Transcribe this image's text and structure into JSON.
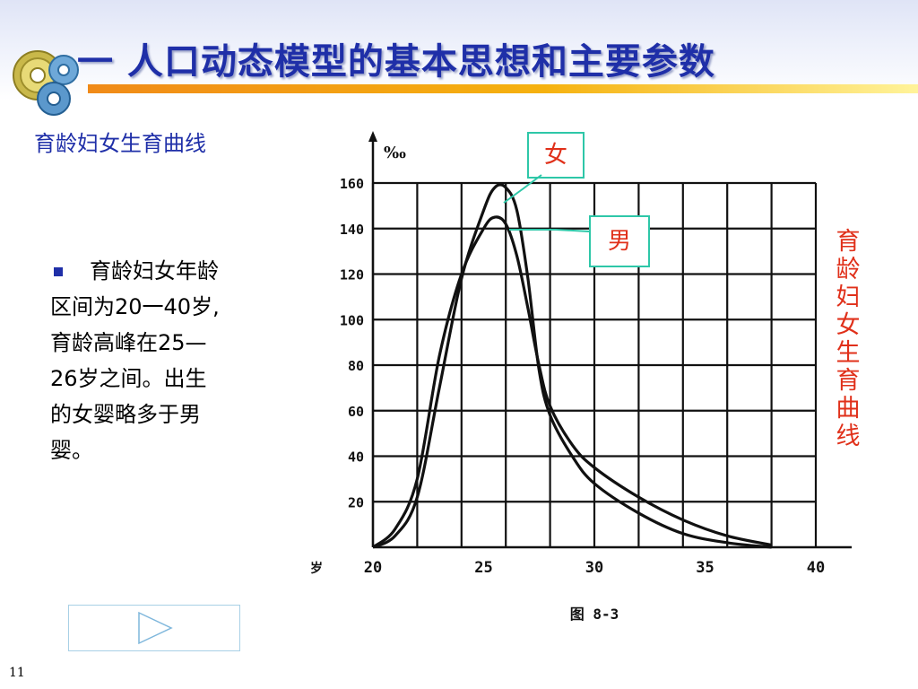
{
  "title": "一 人口动态模型的基本思想和主要参数",
  "subtitle": "育龄妇女生育曲线",
  "body_lines": [
    "育龄妇女年龄",
    "区间为20一40岁,",
    "育龄高峰在25—",
    "26岁之间。出生",
    "的女婴略多于男",
    "婴。"
  ],
  "vertical_label": [
    "育",
    "龄",
    "妇",
    "女",
    "生",
    "育",
    "曲",
    "线"
  ],
  "callouts": {
    "female": "女",
    "male": "男"
  },
  "page_number": "11",
  "colors": {
    "title": "#1f2fa8",
    "accent": "#e0301a",
    "callout_border": "#2ec7a8"
  },
  "chart_data": {
    "type": "line",
    "ylabel": "‰",
    "figure_caption": "图 8-3",
    "x_origin_label": "岁",
    "xlim": [
      20,
      40
    ],
    "ylim": [
      0,
      160
    ],
    "xticks": [
      20,
      25,
      30,
      35,
      40
    ],
    "yticks": [
      20,
      40,
      60,
      80,
      100,
      120,
      140,
      160
    ],
    "grid": true,
    "series": [
      {
        "name": "女",
        "x": [
          20,
          21,
          22,
          23,
          24,
          25,
          25.5,
          26,
          26.5,
          27,
          27.5,
          28,
          29,
          30,
          32,
          34,
          36,
          38
        ],
        "y": [
          0,
          5,
          22,
          70,
          118,
          148,
          158,
          158,
          148,
          118,
          78,
          58,
          40,
          28,
          15,
          6,
          2,
          0
        ]
      },
      {
        "name": "男",
        "x": [
          20,
          21,
          22,
          23,
          24,
          25,
          25.5,
          26,
          26.5,
          27,
          27.5,
          28,
          29,
          30,
          32,
          34,
          36,
          38
        ],
        "y": [
          0,
          8,
          30,
          84,
          120,
          140,
          145,
          142,
          128,
          105,
          80,
          62,
          45,
          35,
          22,
          12,
          5,
          1
        ]
      }
    ]
  }
}
